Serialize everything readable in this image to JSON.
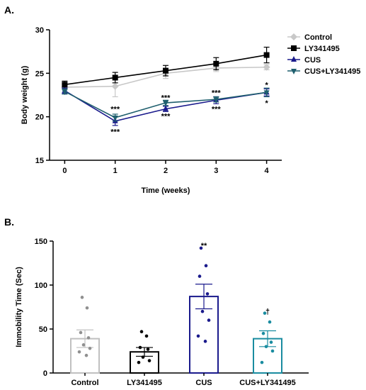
{
  "chart_data": [
    {
      "panel": "A.",
      "type": "line",
      "xlabel": "Time (weeks)",
      "ylabel": "Body weight (g)",
      "x": [
        0,
        1,
        2,
        3,
        4
      ],
      "xlim": [
        -0.3,
        4.3
      ],
      "ylim": [
        15,
        30
      ],
      "yticks": [
        15,
        20,
        25,
        30
      ],
      "legend_position": "top-right",
      "series": [
        {
          "name": "Control",
          "color": "#c8c8c8",
          "marker": "diamond",
          "values": [
            23.4,
            23.5,
            25.0,
            25.6,
            25.7
          ],
          "errors": [
            0.3,
            1.2,
            0.6,
            0.4,
            0.3
          ]
        },
        {
          "name": "LY341495",
          "color": "#000000",
          "marker": "square",
          "values": [
            23.7,
            24.5,
            25.3,
            26.1,
            27.1
          ],
          "errors": [
            0.4,
            0.6,
            0.6,
            0.7,
            0.9
          ]
        },
        {
          "name": "CUS",
          "color": "#1a1a8c",
          "marker": "triangle-up",
          "values": [
            23.0,
            19.5,
            20.9,
            21.9,
            22.8
          ],
          "errors": [
            0.3,
            0.5,
            0.3,
            0.4,
            0.4
          ]
        },
        {
          "name": "CUS+LY341495",
          "color": "#1f5f6e",
          "marker": "triangle-down",
          "values": [
            22.9,
            19.9,
            21.6,
            22.0,
            22.8
          ],
          "errors": [
            0.3,
            0.4,
            0.3,
            0.3,
            0.5
          ]
        }
      ],
      "annotations": [
        {
          "x": 1,
          "y": 20.9,
          "text": "***"
        },
        {
          "x": 1,
          "y": 18.3,
          "text": "***"
        },
        {
          "x": 2,
          "y": 22.2,
          "text": "***"
        },
        {
          "x": 2,
          "y": 20.1,
          "text": "***"
        },
        {
          "x": 3,
          "y": 22.8,
          "text": "***"
        },
        {
          "x": 3,
          "y": 20.9,
          "text": "***"
        },
        {
          "x": 4,
          "y": 23.7,
          "text": "*"
        },
        {
          "x": 4,
          "y": 21.6,
          "text": "*"
        }
      ]
    },
    {
      "panel": "B.",
      "type": "bar",
      "xlabel": "",
      "ylabel": "Immobility Time (Sec)",
      "categories": [
        "Control",
        "LY341495",
        "CUS",
        "CUS+LY341495"
      ],
      "values": [
        39,
        24,
        87,
        39
      ],
      "errors": [
        10,
        5,
        14,
        9
      ],
      "colors": [
        "#c0c0c0",
        "#000000",
        "#1a1a8c",
        "#1a8ca0"
      ],
      "ylim": [
        0,
        150
      ],
      "yticks": [
        0,
        50,
        100,
        150
      ],
      "points": [
        [
          86,
          74,
          46,
          40,
          32,
          28,
          24,
          20
        ],
        [
          47,
          42,
          29,
          27,
          18,
          14,
          12
        ],
        [
          142,
          122,
          110,
          90,
          70,
          60,
          42,
          36
        ],
        [
          68,
          58,
          45,
          35,
          30,
          25,
          12
        ]
      ],
      "annotations": [
        {
          "category": 2,
          "y": 145,
          "text": "**"
        },
        {
          "category": 3,
          "y": 70,
          "text": "†"
        }
      ]
    }
  ]
}
